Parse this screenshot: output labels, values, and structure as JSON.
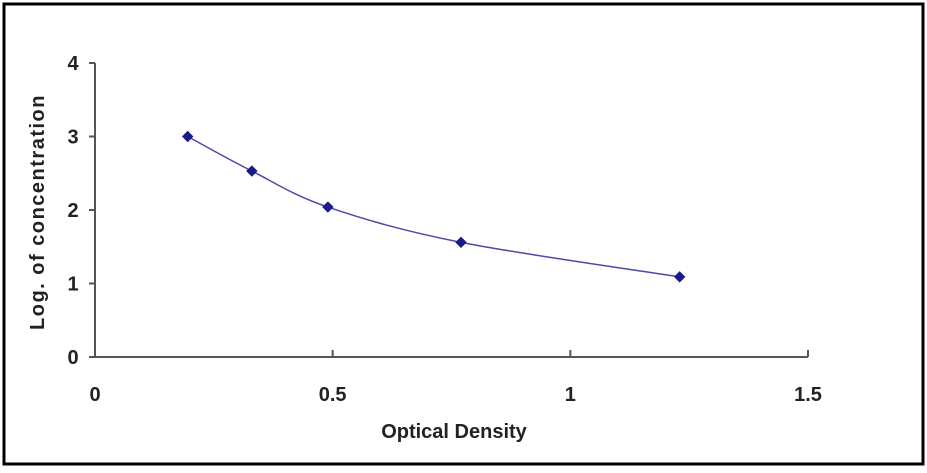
{
  "chart_data": {
    "type": "scatter",
    "title": "",
    "xlabel": "Optical Density",
    "ylabel": "Log. of concentration",
    "xlim": [
      0,
      1.5
    ],
    "ylim": [
      0,
      4
    ],
    "x_ticks": [
      0,
      0.5,
      1,
      1.5
    ],
    "x_tick_labels": [
      "0",
      "0.5",
      "1",
      "1.5"
    ],
    "y_ticks": [
      0,
      1,
      2,
      3,
      4
    ],
    "y_tick_labels": [
      "0",
      "1",
      "2",
      "3",
      "4"
    ],
    "grid": false,
    "legend": "none",
    "series": [
      {
        "x": [
          0.195,
          0.33,
          0.49,
          0.77,
          1.23
        ],
        "y": [
          3.0,
          2.53,
          2.04,
          1.56,
          1.09
        ],
        "color": "#1a1a8c",
        "trendline": "smooth curve"
      }
    ]
  }
}
